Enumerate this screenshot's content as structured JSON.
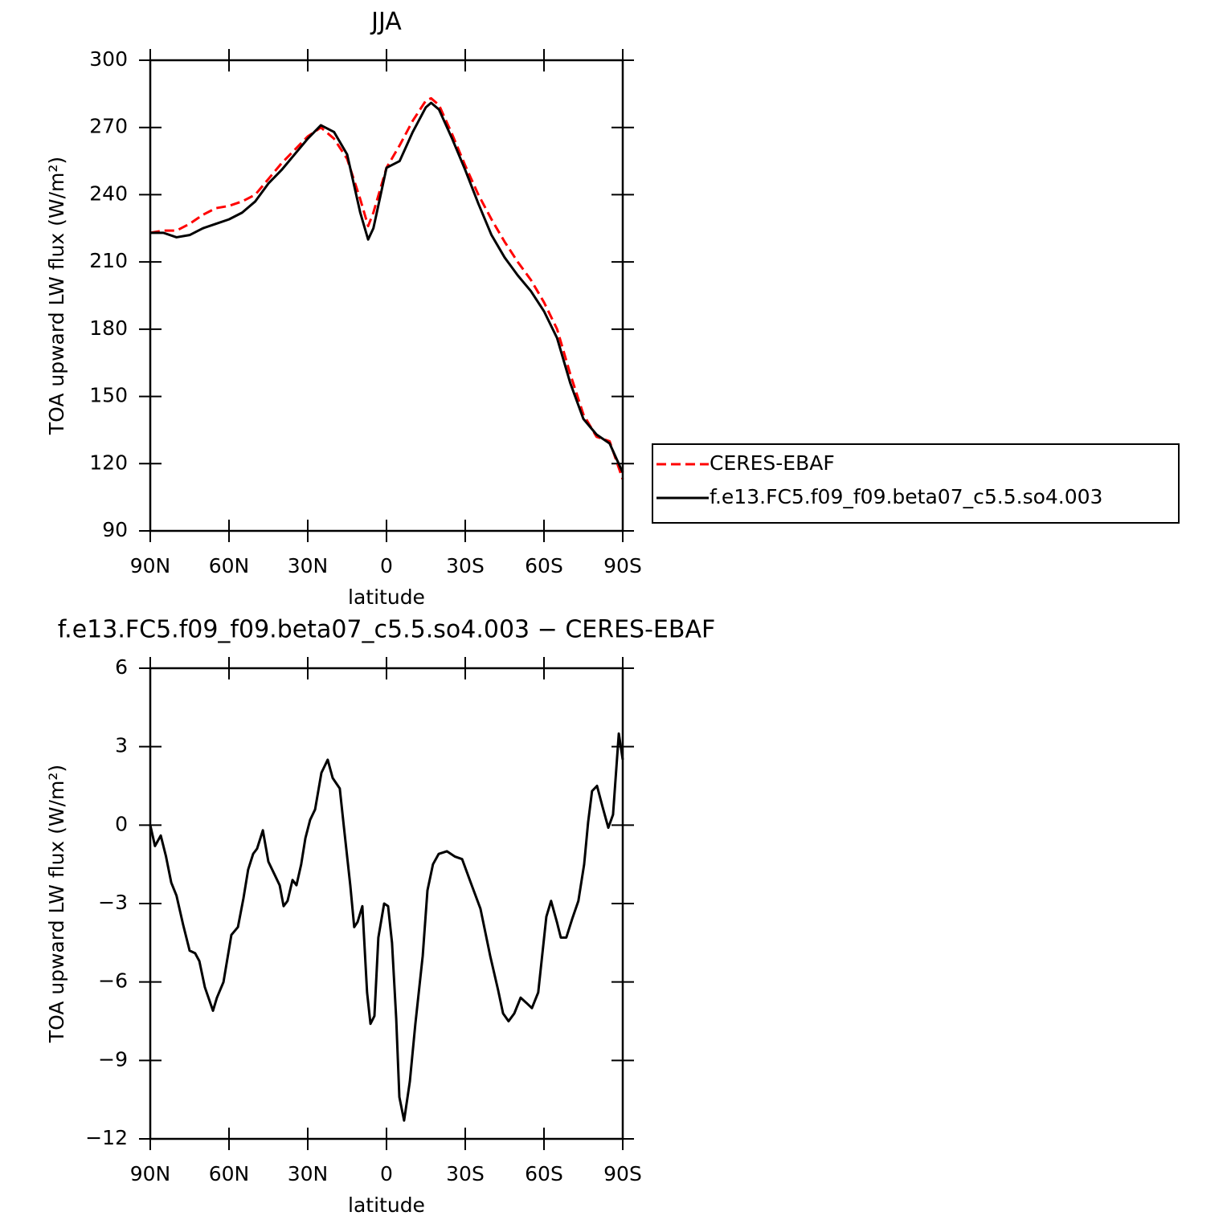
{
  "chart_data": [
    {
      "type": "line",
      "title": "JJA",
      "xlabel": "latitude",
      "ylabel": "TOA upward LW flux (W/m²)",
      "xlim": [
        90,
        -90
      ],
      "ylim": [
        90,
        300
      ],
      "xticks": [
        {
          "value": 90,
          "label": "90N"
        },
        {
          "value": 60,
          "label": "60N"
        },
        {
          "value": 30,
          "label": "30N"
        },
        0,
        {
          "value": -30,
          "label": "30S"
        },
        {
          "value": -60,
          "label": "60S"
        },
        {
          "value": -90,
          "label": "90S"
        }
      ],
      "yticks": [
        90,
        120,
        150,
        180,
        210,
        240,
        270,
        300
      ],
      "legend": "right",
      "x": [
        90,
        85,
        80,
        75,
        70,
        65,
        60,
        55,
        50,
        45,
        40,
        35,
        30,
        25,
        20,
        15,
        10,
        7,
        5,
        0,
        -5,
        -10,
        -15,
        -17,
        -20,
        -25,
        -30,
        -35,
        -40,
        -45,
        -50,
        -55,
        -60,
        -65,
        -70,
        -75,
        -80,
        -85,
        -90
      ],
      "series": [
        {
          "name": "CERES-EBAF",
          "color": "#ff0000",
          "linestyle": "dashed",
          "values": [
            223,
            224,
            224,
            227,
            231,
            234,
            235,
            237,
            240,
            247,
            254,
            260,
            266,
            270,
            265,
            256,
            238,
            226,
            232,
            252,
            262,
            273,
            282,
            283,
            280,
            267,
            253,
            240,
            229,
            219,
            210,
            202,
            192,
            180,
            160,
            142,
            132,
            130,
            113
          ]
        },
        {
          "name": "f.e13.FC5.f09_f09.beta07_c5.5.so4.003",
          "color": "#000000",
          "linestyle": "solid",
          "values": [
            223,
            223,
            221,
            222,
            225,
            227,
            229,
            232,
            237,
            245,
            251,
            258,
            265,
            271,
            268,
            258,
            232,
            220,
            225,
            252,
            255,
            268,
            279,
            281,
            278,
            265,
            251,
            236,
            222,
            212,
            204,
            197,
            188,
            176,
            156,
            140,
            133,
            129,
            116
          ]
        }
      ]
    },
    {
      "type": "line",
      "title": "f.e13.FC5.f09_f09.beta07_c5.5.so4.003 − CERES-EBAF",
      "xlabel": "latitude",
      "ylabel": "TOA upward LW flux (W/m²)",
      "xlim": [
        90,
        -90
      ],
      "ylim": [
        -12,
        6
      ],
      "xticks": [
        {
          "value": 90,
          "label": "90N"
        },
        {
          "value": 60,
          "label": "60N"
        },
        {
          "value": 30,
          "label": "30N"
        },
        0,
        {
          "value": -30,
          "label": "30S"
        },
        {
          "value": -60,
          "label": "60S"
        },
        {
          "value": -90,
          "label": "90S"
        }
      ],
      "yticks": [
        {
          "value": -12,
          "label": "−12"
        },
        {
          "value": -9,
          "label": "−9"
        },
        {
          "value": -6,
          "label": "−6"
        },
        {
          "value": -3,
          "label": "−3"
        },
        0,
        3,
        6
      ],
      "x": [
        90,
        88.2,
        86,
        84,
        82,
        80,
        77.5,
        75,
        72.9,
        71.3,
        69.2,
        66.1,
        64.6,
        62.1,
        59.1,
        56.6,
        54.5,
        52.7,
        50.8,
        49.3,
        47.1,
        45,
        42.6,
        40.7,
        39.2,
        37.7,
        35.8,
        34.3,
        32.5,
        30.9,
        29.1,
        27.2,
        24.8,
        22.4,
        20.5,
        17.8,
        16.2,
        13.8,
        12.3,
        11,
        9.2,
        7.4,
        6.1,
        4.6,
        3.1,
        0.9,
        -0.6,
        -2.1,
        -3.7,
        -4.9,
        -6.7,
        -8.9,
        -11,
        -13.8,
        -15.6,
        -17.7,
        -19.9,
        -23,
        -26,
        -28.8,
        -32.1,
        -35.8,
        -39.5,
        -42.5,
        -44.4,
        -46.5,
        -48.7,
        -51.1,
        -53.3,
        -55.4,
        -57.8,
        -60.9,
        -62.7,
        -64.9,
        -66.4,
        -68.5,
        -70.7,
        -73.1,
        -75.3,
        -76.8,
        -78.3,
        -80.2,
        -82.3,
        -84.5,
        -86.3,
        -88.5,
        -90
      ],
      "series": [
        {
          "color": "#000000",
          "linestyle": "solid",
          "values": [
            0,
            -0.8,
            -0.4,
            -1.2,
            -2.2,
            -2.7,
            -3.8,
            -4.8,
            -4.9,
            -5.2,
            -6.2,
            -7.1,
            -6.6,
            -6.0,
            -4.2,
            -3.9,
            -2.8,
            -1.7,
            -1.1,
            -0.9,
            -0.2,
            -1.4,
            -1.9,
            -2.3,
            -3.1,
            -2.9,
            -2.1,
            -2.3,
            -1.5,
            -0.5,
            0.2,
            0.6,
            2.0,
            2.5,
            1.8,
            1.4,
            -0.1,
            -2.3,
            -3.9,
            -3.7,
            -3.1,
            -6.4,
            -7.6,
            -7.3,
            -4.3,
            -3.0,
            -3.1,
            -4.5,
            -7.4,
            -10.4,
            -11.3,
            -9.8,
            -7.6,
            -5.0,
            -2.5,
            -1.5,
            -1.1,
            -1.0,
            -1.2,
            -1.3,
            -2.2,
            -3.2,
            -5.0,
            -6.3,
            -7.2,
            -7.5,
            -7.2,
            -6.6,
            -6.8,
            -7.0,
            -6.4,
            -3.5,
            -2.9,
            -3.7,
            -4.3,
            -4.3,
            -3.6,
            -2.9,
            -1.5,
            0.1,
            1.3,
            1.5,
            0.7,
            -0.1,
            0.4,
            3.5,
            2.5
          ]
        }
      ]
    }
  ]
}
